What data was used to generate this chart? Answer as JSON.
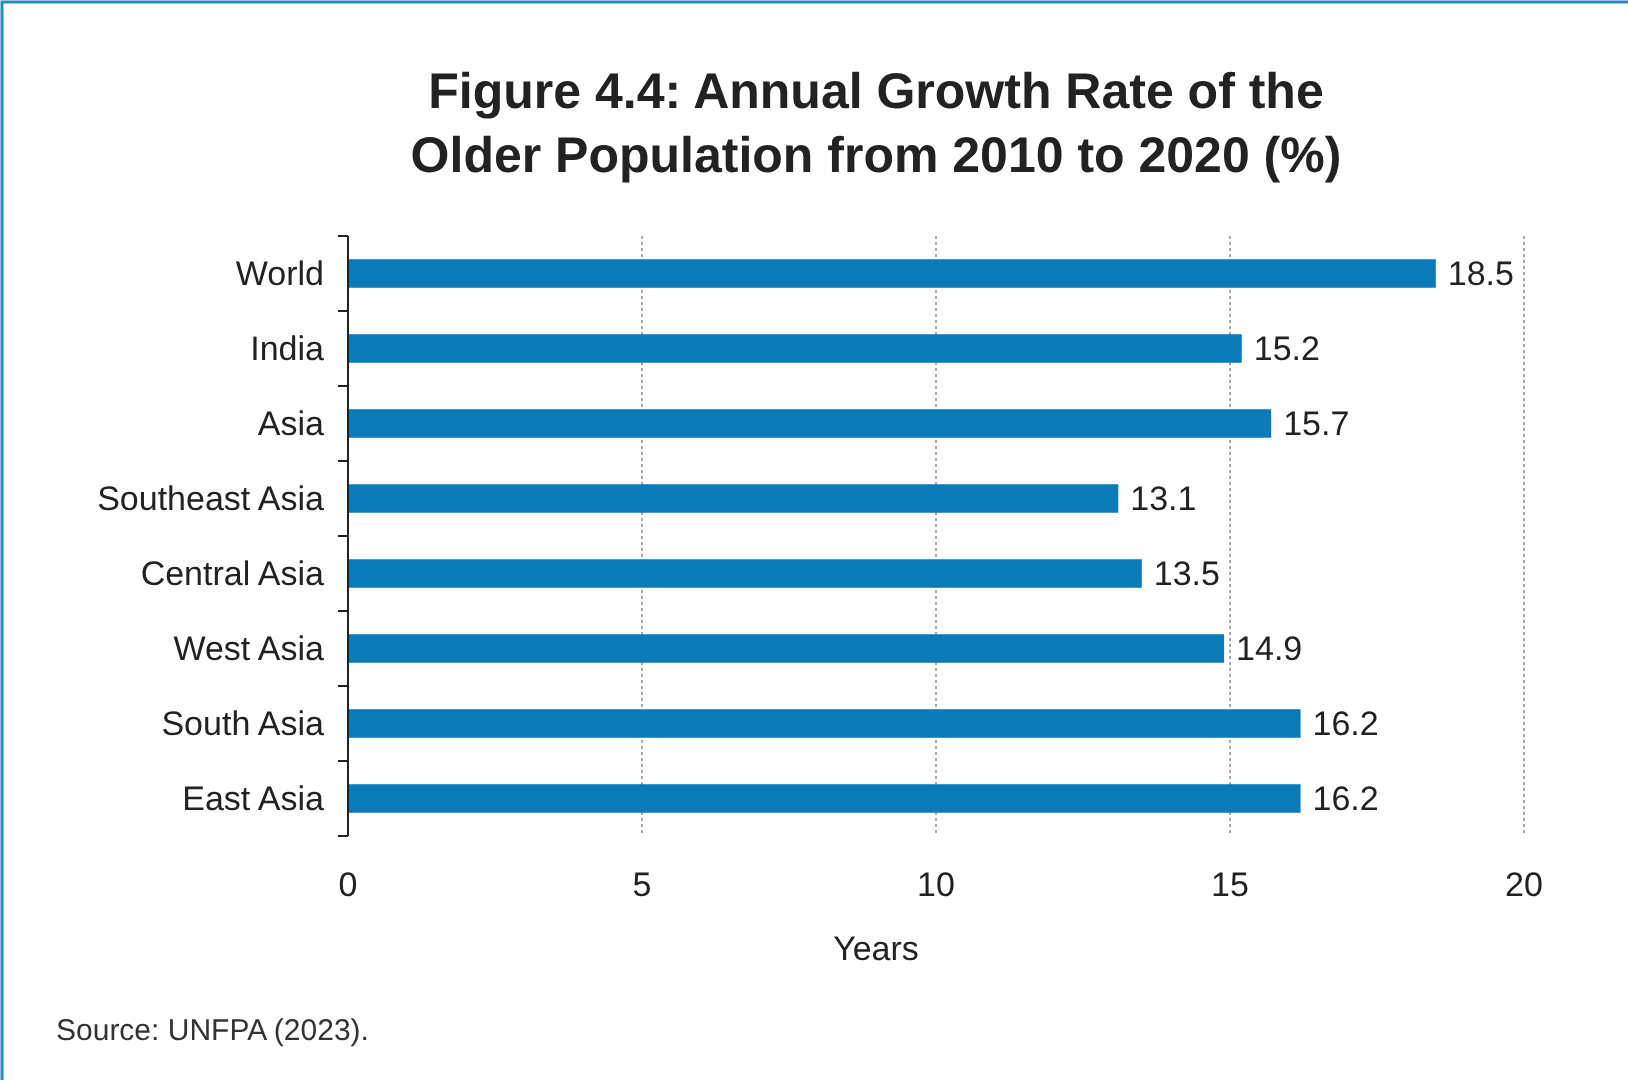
{
  "chart_data": {
    "type": "bar",
    "orientation": "horizontal",
    "title": "Figure 4.4: Annual Growth Rate of the Older Population from 2010 to 2020 (%)",
    "xlabel": "Years",
    "categories": [
      "World",
      "India",
      "Asia",
      "Southeast Asia",
      "Central Asia",
      "West Asia",
      "South Asia",
      "East Asia"
    ],
    "values": [
      18.5,
      15.2,
      15.7,
      13.1,
      13.5,
      14.9,
      16.2,
      16.2
    ],
    "color": "#0a7ab8",
    "xlim": [
      0,
      20
    ],
    "xticks": [
      0,
      5,
      10,
      15,
      20
    ],
    "grid": "x",
    "data_labels": true,
    "annotations": [
      "Source: UNFPA (2023)."
    ]
  }
}
